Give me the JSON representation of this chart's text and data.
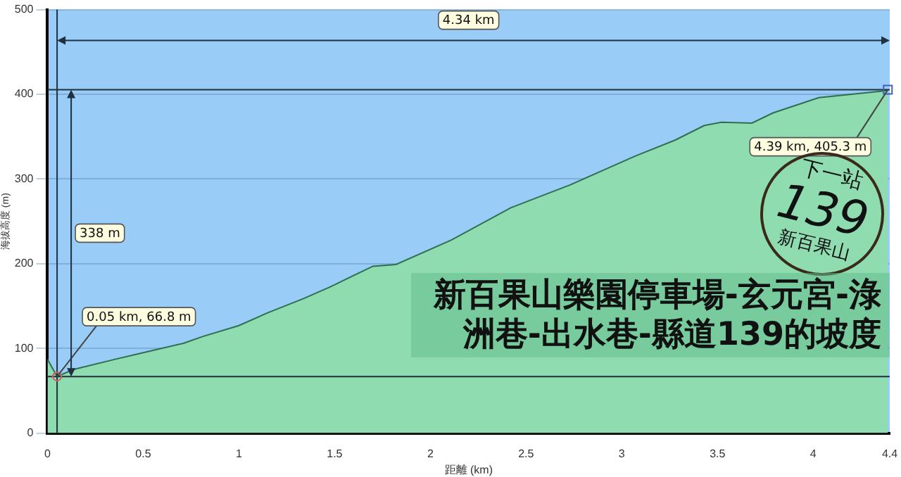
{
  "chart_data": {
    "type": "area",
    "title": "新百果山樂園停車場-玄元宮-淥洲巷-出水巷-縣道139的坡度",
    "xlabel": "距離 (km)",
    "ylabel": "海拔高度 (m)",
    "x": [
      0,
      0.05,
      0.135,
      0.35,
      0.52,
      0.71,
      0.81,
      1.0,
      1.15,
      1.34,
      1.48,
      1.7,
      1.82,
      2.11,
      2.42,
      2.73,
      3.07,
      3.28,
      3.43,
      3.52,
      3.68,
      3.79,
      4.03,
      4.37,
      4.39
    ],
    "series": [
      {
        "color": "#8edcb0",
        "values": [
          87,
          66.8,
          75,
          87,
          96,
          106,
          114,
          127,
          142,
          159,
          173,
          197,
          199,
          228,
          266,
          293,
          327,
          346,
          363,
          367,
          366,
          378,
          396,
          404,
          405.3
        ]
      }
    ],
    "xlim": [
      0,
      4.4
    ],
    "xticks": [
      0,
      0.5,
      1.0,
      1.5,
      2.0,
      2.5,
      3.0,
      3.5,
      4.0,
      4.4
    ],
    "ylim": [
      0,
      500
    ],
    "yticks": [
      0,
      100,
      200,
      300,
      400,
      500
    ],
    "ref_lines": [
      {
        "axis": "x",
        "value": 0.05,
        "color": "#1f3040"
      },
      {
        "axis": "y",
        "value": 66.8,
        "color": "#1f3040"
      },
      {
        "axis": "y",
        "value": 405.3,
        "color": "#1f3040"
      }
    ],
    "annotations": [
      "4.34 km",
      "338 m",
      {
        "text": "0.05 km, 66.8 m",
        "x": 0.05,
        "y": 66.8
      },
      {
        "text": "4.39 km, 405.3 m",
        "x": 4.39,
        "y": 405.3
      },
      "下一站",
      "139",
      "新百果山"
    ],
    "grid": "y",
    "marker": "none",
    "legend": false
  }
}
